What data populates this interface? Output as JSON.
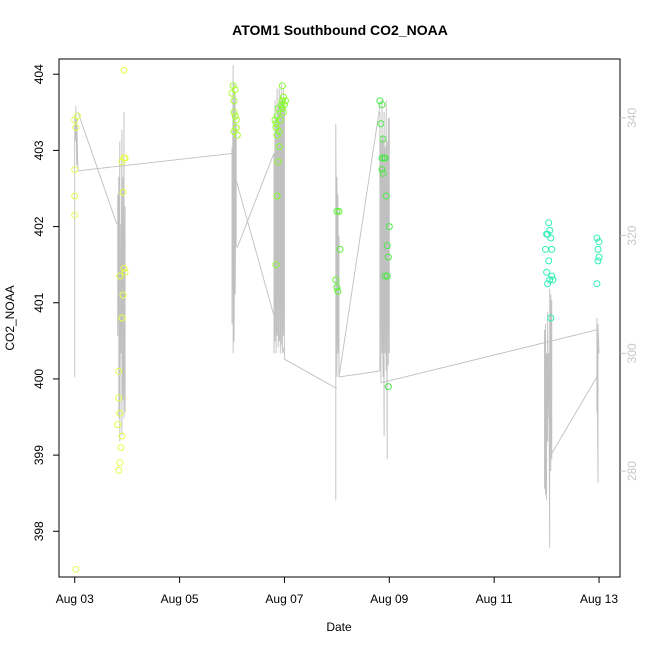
{
  "chart_data": {
    "type": "scatter",
    "title": "ATOM1 Southbound CO2_NOAA",
    "xlabel": "Date",
    "ylabel": "CO2_NOAA",
    "x_ticks": [
      "Aug 03",
      "Aug 05",
      "Aug 07",
      "Aug 09",
      "Aug 11",
      "Aug 13"
    ],
    "x_tick_days": [
      3,
      5,
      7,
      9,
      11,
      13
    ],
    "xlim": [
      2.7,
      13.4
    ],
    "ylim": [
      397.4,
      404.2
    ],
    "y_ticks": [
      398,
      399,
      400,
      401,
      402,
      403,
      404
    ],
    "y2_ticks": [
      280,
      300,
      320,
      340
    ],
    "y2_lim": [
      262,
      350
    ],
    "grid": false,
    "points": [
      {
        "x": 3.0,
        "y": 403.4,
        "color": "#dfff5a"
      },
      {
        "x": 3.02,
        "y": 403.3,
        "color": "#dfff5a"
      },
      {
        "x": 3.05,
        "y": 403.45,
        "color": "#dfff5a"
      },
      {
        "x": 3.0,
        "y": 402.75,
        "color": "#dfff5a"
      },
      {
        "x": 3.0,
        "y": 402.4,
        "color": "#dfff5a"
      },
      {
        "x": 3.0,
        "y": 402.15,
        "color": "#dfff5a"
      },
      {
        "x": 3.02,
        "y": 397.5,
        "color": "#dfff5a"
      },
      {
        "x": 3.82,
        "y": 399.4,
        "color": "#e6ff47"
      },
      {
        "x": 3.84,
        "y": 398.8,
        "color": "#e6ff47"
      },
      {
        "x": 3.86,
        "y": 398.9,
        "color": "#e6ff47"
      },
      {
        "x": 3.86,
        "y": 399.55,
        "color": "#e6ff47"
      },
      {
        "x": 3.84,
        "y": 399.75,
        "color": "#e6ff47"
      },
      {
        "x": 3.88,
        "y": 399.1,
        "color": "#e6ff47"
      },
      {
        "x": 3.9,
        "y": 399.25,
        "color": "#e6ff47"
      },
      {
        "x": 3.84,
        "y": 400.1,
        "color": "#e6ff47"
      },
      {
        "x": 3.86,
        "y": 401.35,
        "color": "#e6ff47"
      },
      {
        "x": 3.9,
        "y": 400.8,
        "color": "#e6ff47"
      },
      {
        "x": 3.92,
        "y": 401.1,
        "color": "#e6ff47"
      },
      {
        "x": 3.94,
        "y": 401.45,
        "color": "#e6ff47"
      },
      {
        "x": 3.96,
        "y": 401.4,
        "color": "#e6ff47"
      },
      {
        "x": 3.92,
        "y": 402.45,
        "color": "#e6ff47"
      },
      {
        "x": 3.9,
        "y": 402.85,
        "color": "#e6ff47"
      },
      {
        "x": 3.94,
        "y": 402.9,
        "color": "#e6ff47"
      },
      {
        "x": 3.96,
        "y": 402.9,
        "color": "#e6ff47"
      },
      {
        "x": 3.94,
        "y": 404.05,
        "color": "#e6ff47"
      },
      {
        "x": 6.0,
        "y": 403.75,
        "color": "#a6ff30"
      },
      {
        "x": 6.02,
        "y": 403.85,
        "color": "#a6ff30"
      },
      {
        "x": 6.04,
        "y": 403.65,
        "color": "#a6ff30"
      },
      {
        "x": 6.06,
        "y": 403.8,
        "color": "#a6ff30"
      },
      {
        "x": 6.04,
        "y": 403.5,
        "color": "#a6ff30"
      },
      {
        "x": 6.06,
        "y": 403.45,
        "color": "#a6ff30"
      },
      {
        "x": 6.08,
        "y": 403.4,
        "color": "#a6ff30"
      },
      {
        "x": 6.04,
        "y": 403.25,
        "color": "#a6ff30"
      },
      {
        "x": 6.08,
        "y": 403.3,
        "color": "#a6ff30"
      },
      {
        "x": 6.1,
        "y": 403.2,
        "color": "#a6ff30"
      },
      {
        "x": 6.82,
        "y": 403.4,
        "color": "#88ff2e"
      },
      {
        "x": 6.84,
        "y": 403.35,
        "color": "#88ff2e"
      },
      {
        "x": 6.86,
        "y": 403.45,
        "color": "#88ff2e"
      },
      {
        "x": 6.88,
        "y": 403.55,
        "color": "#88ff2e"
      },
      {
        "x": 6.84,
        "y": 403.3,
        "color": "#88ff2e"
      },
      {
        "x": 6.86,
        "y": 403.2,
        "color": "#88ff2e"
      },
      {
        "x": 6.9,
        "y": 403.25,
        "color": "#88ff2e"
      },
      {
        "x": 6.92,
        "y": 403.4,
        "color": "#88ff2e"
      },
      {
        "x": 6.94,
        "y": 403.6,
        "color": "#88ff2e"
      },
      {
        "x": 6.96,
        "y": 403.65,
        "color": "#88ff2e"
      },
      {
        "x": 6.98,
        "y": 403.7,
        "color": "#88ff2e"
      },
      {
        "x": 7.0,
        "y": 403.6,
        "color": "#88ff2e"
      },
      {
        "x": 7.02,
        "y": 403.65,
        "color": "#88ff2e"
      },
      {
        "x": 6.96,
        "y": 403.55,
        "color": "#88ff2e"
      },
      {
        "x": 6.98,
        "y": 403.5,
        "color": "#88ff2e"
      },
      {
        "x": 6.96,
        "y": 403.85,
        "color": "#88ff2e"
      },
      {
        "x": 6.9,
        "y": 403.05,
        "color": "#88ff2e"
      },
      {
        "x": 6.88,
        "y": 402.85,
        "color": "#88ff2e"
      },
      {
        "x": 6.86,
        "y": 402.4,
        "color": "#88ff2e"
      },
      {
        "x": 6.84,
        "y": 401.5,
        "color": "#88ff2e"
      },
      {
        "x": 8.0,
        "y": 402.2,
        "color": "#5ef23a"
      },
      {
        "x": 8.04,
        "y": 402.2,
        "color": "#5ef23a"
      },
      {
        "x": 8.06,
        "y": 401.7,
        "color": "#5ef23a"
      },
      {
        "x": 7.98,
        "y": 401.3,
        "color": "#5ef23a"
      },
      {
        "x": 8.0,
        "y": 401.2,
        "color": "#5ef23a"
      },
      {
        "x": 8.02,
        "y": 401.15,
        "color": "#5ef23a"
      },
      {
        "x": 8.82,
        "y": 403.65,
        "color": "#4ee84a"
      },
      {
        "x": 8.86,
        "y": 403.6,
        "color": "#4ee84a"
      },
      {
        "x": 8.84,
        "y": 403.35,
        "color": "#4ee84a"
      },
      {
        "x": 8.88,
        "y": 403.15,
        "color": "#4ee84a"
      },
      {
        "x": 8.86,
        "y": 402.9,
        "color": "#4ee84a"
      },
      {
        "x": 8.9,
        "y": 402.9,
        "color": "#4ee84a"
      },
      {
        "x": 8.92,
        "y": 402.9,
        "color": "#4ee84a"
      },
      {
        "x": 8.86,
        "y": 402.75,
        "color": "#4ee84a"
      },
      {
        "x": 8.88,
        "y": 402.7,
        "color": "#4ee84a"
      },
      {
        "x": 8.94,
        "y": 402.4,
        "color": "#4ee84a"
      },
      {
        "x": 9.0,
        "y": 402.0,
        "color": "#4ee84a"
      },
      {
        "x": 8.96,
        "y": 401.75,
        "color": "#4ee84a"
      },
      {
        "x": 8.98,
        "y": 401.6,
        "color": "#4ee84a"
      },
      {
        "x": 8.92,
        "y": 401.35,
        "color": "#4ee84a"
      },
      {
        "x": 8.96,
        "y": 401.35,
        "color": "#4ee84a"
      },
      {
        "x": 8.98,
        "y": 399.9,
        "color": "#4ee84a"
      },
      {
        "x": 12.0,
        "y": 401.9,
        "color": "#2ff0b5"
      },
      {
        "x": 12.04,
        "y": 402.05,
        "color": "#2ff0b5"
      },
      {
        "x": 12.06,
        "y": 401.95,
        "color": "#2ff0b5"
      },
      {
        "x": 12.08,
        "y": 401.85,
        "color": "#2ff0b5"
      },
      {
        "x": 12.02,
        "y": 401.9,
        "color": "#2ff0b5"
      },
      {
        "x": 11.98,
        "y": 401.7,
        "color": "#2ff0b5"
      },
      {
        "x": 12.1,
        "y": 401.7,
        "color": "#2ff0b5"
      },
      {
        "x": 12.04,
        "y": 401.55,
        "color": "#2ff0b5"
      },
      {
        "x": 12.0,
        "y": 401.4,
        "color": "#2ff0b5"
      },
      {
        "x": 12.02,
        "y": 401.25,
        "color": "#2ff0b5"
      },
      {
        "x": 12.06,
        "y": 401.3,
        "color": "#2ff0b5"
      },
      {
        "x": 12.1,
        "y": 401.35,
        "color": "#2ff0b5"
      },
      {
        "x": 12.12,
        "y": 401.3,
        "color": "#2ff0b5"
      },
      {
        "x": 12.08,
        "y": 400.8,
        "color": "#2ff0b5"
      },
      {
        "x": 12.96,
        "y": 401.85,
        "color": "#2ff0b5"
      },
      {
        "x": 13.0,
        "y": 401.8,
        "color": "#2ff0b5"
      },
      {
        "x": 12.98,
        "y": 401.55,
        "color": "#2ff0b5"
      },
      {
        "x": 13.0,
        "y": 401.6,
        "color": "#2ff0b5"
      },
      {
        "x": 12.98,
        "y": 401.7,
        "color": "#2ff0b5"
      },
      {
        "x": 12.96,
        "y": 401.25,
        "color": "#2ff0b5"
      }
    ],
    "secondary_line": {
      "color": "#c0c0c0",
      "description_values_in_y2_units": true,
      "segments": [
        {
          "x": [
            3.0,
            3.0,
            3.02,
            3.02,
            3.04,
            3.04,
            3.06
          ],
          "y": [
            296,
            340,
            336,
            342,
            332,
            340,
            331
          ]
        },
        {
          "x": [
            3.06,
            6.05
          ],
          "y": [
            331,
            334
          ]
        },
        {
          "x": [
            3.06,
            3.8
          ],
          "y": [
            341,
            322
          ]
        },
        {
          "x": [
            3.82,
            3.82,
            3.84,
            3.84,
            3.86,
            3.86,
            3.88,
            3.88,
            3.9,
            3.9,
            3.92,
            3.92,
            3.94,
            3.94,
            3.96,
            3.96
          ],
          "y": [
            327,
            303,
            330,
            289,
            336,
            285,
            322,
            300,
            338,
            286,
            330,
            292,
            341,
            289,
            325,
            290
          ]
        },
        {
          "x": [
            6.0,
            6.0,
            6.02,
            6.02,
            6.04,
            6.04,
            6.06,
            6.06,
            6.08,
            6.08
          ],
          "y": [
            335,
            305,
            349,
            300,
            346,
            302,
            344,
            310,
            339,
            318
          ]
        },
        {
          "x": [
            6.06,
            7.0
          ],
          "y": [
            330,
            300
          ]
        },
        {
          "x": [
            6.1,
            6.8
          ],
          "y": [
            318,
            334
          ]
        },
        {
          "x": [
            6.8,
            6.8,
            6.82,
            6.82,
            6.84,
            6.84,
            6.86,
            6.86,
            6.88,
            6.88,
            6.9,
            6.9,
            6.92,
            6.92,
            6.94,
            6.94,
            6.96,
            6.96,
            6.98,
            6.98,
            7.0,
            7.0
          ],
          "y": [
            334,
            300,
            343,
            302,
            340,
            300,
            345,
            303,
            342,
            301,
            345,
            302,
            343,
            300,
            346,
            302,
            343,
            300,
            345,
            303,
            343,
            299
          ]
        },
        {
          "x": [
            7.0,
            8.0
          ],
          "y": [
            299,
            294
          ]
        },
        {
          "x": [
            7.98,
            7.98,
            8.0,
            8.0,
            8.02,
            8.02,
            8.04,
            8.04
          ],
          "y": [
            275,
            339,
            296,
            330,
            300,
            327,
            296,
            320
          ]
        },
        {
          "x": [
            8.04,
            8.82
          ],
          "y": [
            296,
            342
          ]
        },
        {
          "x": [
            8.04,
            8.82
          ],
          "y": [
            296,
            297
          ]
        },
        {
          "x": [
            8.82,
            8.82,
            8.84,
            8.84,
            8.86,
            8.86,
            8.88,
            8.88,
            8.9,
            8.9,
            8.92,
            8.92,
            8.94,
            8.94,
            8.96,
            8.96,
            8.98,
            8.98,
            9.0,
            9.0
          ],
          "y": [
            297,
            341,
            295,
            336,
            300,
            343,
            296,
            337,
            286,
            341,
            300,
            335,
            297,
            343,
            282,
            336,
            298,
            340,
            300,
            340
          ]
        },
        {
          "x": [
            8.84,
            12.96
          ],
          "y": [
            295,
            304
          ]
        },
        {
          "x": [
            11.96,
            11.96,
            11.98,
            11.98,
            12.0,
            12.0,
            12.02,
            12.02,
            12.04,
            12.04,
            12.06,
            12.06,
            12.08,
            12.08,
            12.1,
            12.1
          ],
          "y": [
            277,
            304,
            276,
            305,
            275,
            300,
            285,
            307,
            289,
            300,
            267,
            311,
            280,
            310,
            282,
            309
          ]
        },
        {
          "x": [
            12.1,
            12.96
          ],
          "y": [
            283,
            296
          ]
        },
        {
          "x": [
            12.96,
            12.96,
            12.98,
            12.98,
            13.0
          ],
          "y": [
            290,
            306,
            278,
            305,
            300
          ]
        }
      ]
    }
  }
}
